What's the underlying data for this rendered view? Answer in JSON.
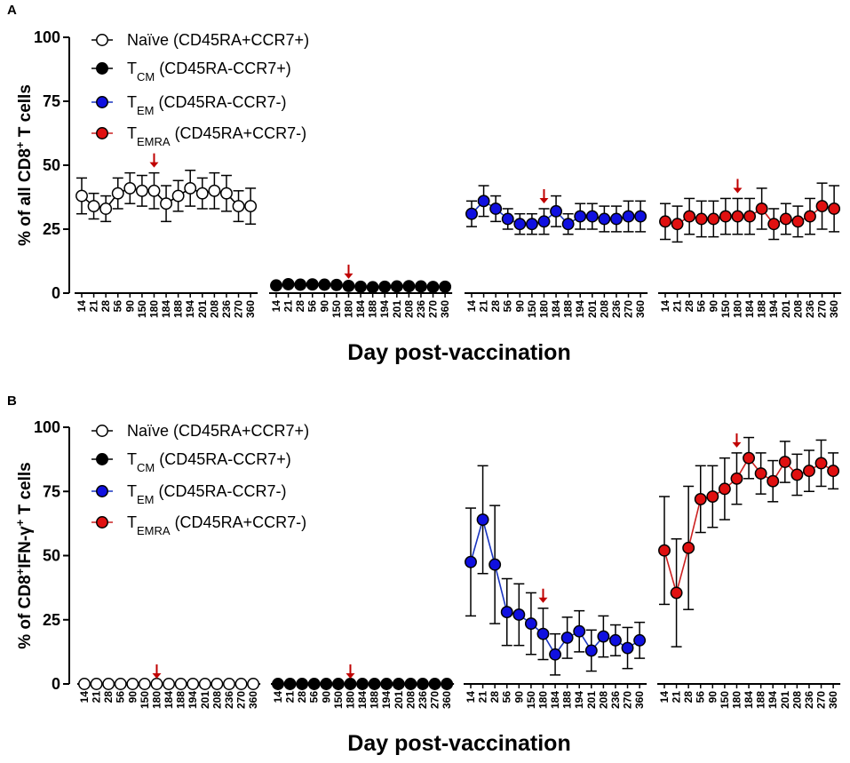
{
  "chart_data": [
    {
      "type": "line",
      "panel": "A",
      "xlabel": "Day post-vaccination",
      "ylabel_parts": {
        "pre": "% of all CD8",
        "sup": "+",
        "post": " T cells"
      },
      "ylim": [
        0,
        100
      ],
      "yticks": [
        0,
        25,
        50,
        75,
        100
      ],
      "arrow_day": "180",
      "legend": [
        {
          "main": "Naïve (CD45RA+CCR7+)",
          "sub": ""
        },
        {
          "main": "T",
          "sub": "CM",
          "rest": " (CD45RA-CCR7+)"
        },
        {
          "main": "T",
          "sub": "EM",
          "rest": " (CD45RA-CCR7-)"
        },
        {
          "main": "T",
          "sub": "EMRA",
          "rest": " (CD45RA+CCR7-)"
        }
      ],
      "series": [
        {
          "name": "Naïve (CD45RA+CCR7+)",
          "fill": "#ffffff",
          "line": "#000000",
          "days": [
            "14",
            "21",
            "28",
            "56",
            "90",
            "150",
            "180",
            "184",
            "188",
            "194",
            "201",
            "208",
            "236",
            "270",
            "360"
          ],
          "values": [
            38,
            34,
            33,
            39,
            41,
            40,
            40,
            35,
            38,
            41,
            39,
            40,
            39,
            34,
            34
          ],
          "err": [
            7,
            5,
            5,
            6,
            6,
            6,
            7,
            7,
            6,
            7,
            6,
            7,
            7,
            6,
            7
          ]
        },
        {
          "name": "TCM (CD45RA-CCR7+)",
          "fill": "#000000",
          "line": "#000000",
          "days": [
            "14",
            "21",
            "28",
            "56",
            "90",
            "150",
            "180",
            "184",
            "188",
            "194",
            "201",
            "208",
            "236",
            "270",
            "360"
          ],
          "values": [
            3,
            3.5,
            3.3,
            3.4,
            3.3,
            3.2,
            2.8,
            2.5,
            2.3,
            2.5,
            2.6,
            2.7,
            2.6,
            2.4,
            2.5
          ],
          "err": [
            0.8,
            0.9,
            0.8,
            0.8,
            0.8,
            0.8,
            0.7,
            0.7,
            0.6,
            0.7,
            0.7,
            0.7,
            0.7,
            0.6,
            0.6
          ]
        },
        {
          "name": "TEM (CD45RA-CCR7-)",
          "fill": "#1010e0",
          "line": "#1a35c0",
          "days": [
            "14",
            "21",
            "28",
            "56",
            "90",
            "150",
            "180",
            "184",
            "188",
            "194",
            "201",
            "208",
            "236",
            "270",
            "360"
          ],
          "values": [
            31,
            36,
            33,
            29,
            27,
            27,
            28,
            32,
            27,
            30,
            30,
            29,
            29,
            30,
            30
          ],
          "err": [
            5,
            6,
            5,
            4,
            4,
            4,
            5,
            6,
            4,
            5,
            5,
            5,
            5,
            6,
            6
          ]
        },
        {
          "name": "TEMRA (CD45RA+CCR7-)",
          "fill": "#e01010",
          "line": "#cc2020",
          "days": [
            "14",
            "21",
            "28",
            "56",
            "90",
            "150",
            "180",
            "184",
            "188",
            "194",
            "201",
            "208",
            "236",
            "270",
            "360"
          ],
          "values": [
            28,
            27,
            30,
            29,
            29,
            30,
            30,
            30,
            33,
            27,
            29,
            28,
            30,
            34,
            33
          ],
          "err": [
            7,
            7,
            7,
            7,
            7,
            7,
            7,
            7,
            8,
            6,
            6,
            6,
            7,
            9,
            9
          ]
        }
      ]
    },
    {
      "type": "line",
      "panel": "B",
      "xlabel": "Day post-vaccination",
      "ylabel_parts": {
        "pre": "% of CD8",
        "sup": "+",
        "mid": "IFN-γ",
        "sup2": "+",
        "post": " T cells"
      },
      "ylim": [
        0,
        100
      ],
      "yticks": [
        0,
        25,
        50,
        75,
        100
      ],
      "arrow_day": "180",
      "legend": [
        {
          "main": "Naïve (CD45RA+CCR7+)",
          "sub": ""
        },
        {
          "main": "T",
          "sub": "CM",
          "rest": " (CD45RA-CCR7+)"
        },
        {
          "main": "T",
          "sub": "EM",
          "rest": " (CD45RA-CCR7-)"
        },
        {
          "main": "T",
          "sub": "EMRA",
          "rest": " (CD45RA+CCR7-)"
        }
      ],
      "series": [
        {
          "name": "Naïve (CD45RA+CCR7+)",
          "fill": "#ffffff",
          "line": "#000000",
          "days": [
            "14",
            "21",
            "28",
            "56",
            "90",
            "150",
            "180",
            "184",
            "188",
            "194",
            "201",
            "208",
            "236",
            "270",
            "360"
          ],
          "values": [
            0,
            0,
            0,
            0,
            0,
            0,
            0,
            0,
            0,
            0,
            0,
            0,
            0,
            0,
            0
          ],
          "err": [
            0,
            0,
            0,
            0,
            0,
            0,
            0,
            0,
            0,
            0,
            0,
            0,
            0,
            0,
            0
          ]
        },
        {
          "name": "TCM (CD45RA-CCR7+)",
          "fill": "#000000",
          "line": "#000000",
          "days": [
            "14",
            "21",
            "28",
            "56",
            "90",
            "150",
            "180",
            "184",
            "188",
            "194",
            "201",
            "208",
            "236",
            "270",
            "360"
          ],
          "values": [
            0,
            0,
            0,
            0,
            0,
            0,
            0,
            0,
            0,
            0,
            0,
            0,
            0,
            0,
            0
          ],
          "err": [
            0,
            0,
            0,
            0,
            0,
            0,
            0,
            0,
            0,
            0,
            0,
            0,
            0,
            0,
            0
          ]
        },
        {
          "name": "TEM (CD45RA-CCR7-)",
          "fill": "#1010e0",
          "line": "#1a35c0",
          "days": [
            "14",
            "21",
            "28",
            "56",
            "90",
            "150",
            "180",
            "184",
            "188",
            "194",
            "201",
            "208",
            "236",
            "270",
            "360"
          ],
          "values": [
            47.5,
            64,
            46.5,
            28,
            27,
            23.5,
            19.5,
            11.5,
            18,
            20.5,
            13,
            18.5,
            17,
            14,
            17
          ],
          "err": [
            21,
            21,
            23,
            13,
            12,
            12,
            10,
            8,
            8,
            8,
            8,
            8,
            6,
            8,
            7
          ]
        },
        {
          "name": "TEMRA (CD45RA+CCR7-)",
          "fill": "#e01010",
          "line": "#cc2020",
          "days": [
            "14",
            "21",
            "28",
            "56",
            "90",
            "150",
            "180",
            "184",
            "188",
            "194",
            "201",
            "208",
            "236",
            "270",
            "360"
          ],
          "values": [
            52,
            35.5,
            53,
            72,
            73,
            76,
            80,
            88,
            82,
            79,
            86.5,
            81.5,
            83,
            86,
            83
          ],
          "err": [
            21,
            21,
            24,
            13,
            12,
            12,
            10,
            8,
            8,
            8,
            8,
            8,
            8,
            9,
            7
          ]
        }
      ]
    }
  ]
}
